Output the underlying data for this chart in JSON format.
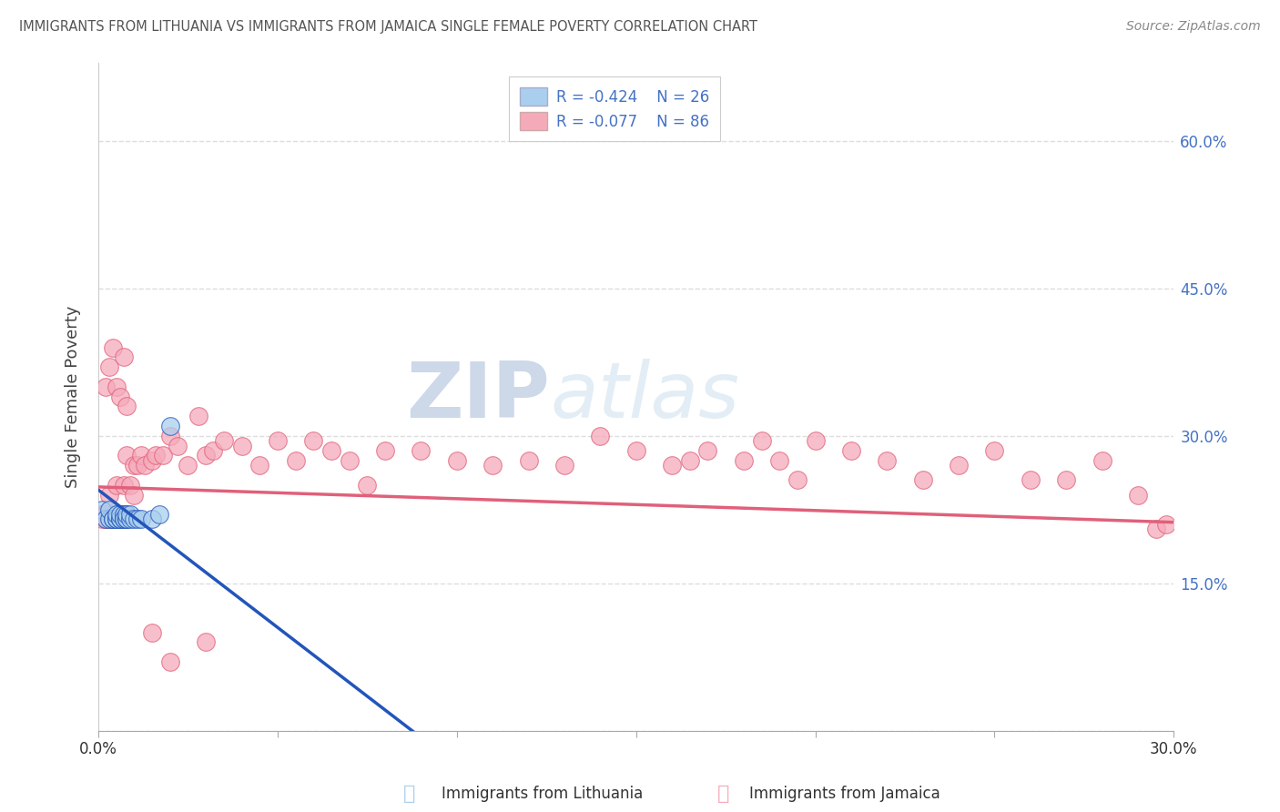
{
  "title": "IMMIGRANTS FROM LITHUANIA VS IMMIGRANTS FROM JAMAICA SINGLE FEMALE POVERTY CORRELATION CHART",
  "source": "Source: ZipAtlas.com",
  "ylabel": "Single Female Poverty",
  "xlim": [
    0.0,
    0.3
  ],
  "ylim": [
    0.0,
    0.68
  ],
  "xticks": [
    0.0,
    0.05,
    0.1,
    0.15,
    0.2,
    0.25,
    0.3
  ],
  "yticks": [
    0.0,
    0.15,
    0.3,
    0.45,
    0.6
  ],
  "legend_R1": "R = -0.424",
  "legend_N1": "N = 26",
  "legend_R2": "R = -0.077",
  "legend_N2": "N = 86",
  "color_lithuania": "#aacfee",
  "color_jamaica": "#f5aaba",
  "color_blue_line": "#2255bb",
  "color_pink_line": "#e0607a",
  "color_dashed": "#b8c8d8",
  "watermark_zip": "ZIP",
  "watermark_atlas": "atlas",
  "lithuania_x": [
    0.001,
    0.002,
    0.003,
    0.003,
    0.004,
    0.004,
    0.005,
    0.005,
    0.005,
    0.006,
    0.006,
    0.006,
    0.007,
    0.007,
    0.007,
    0.008,
    0.008,
    0.008,
    0.009,
    0.009,
    0.01,
    0.011,
    0.012,
    0.015,
    0.017,
    0.02
  ],
  "lithuania_y": [
    0.225,
    0.215,
    0.215,
    0.225,
    0.215,
    0.215,
    0.215,
    0.215,
    0.22,
    0.215,
    0.215,
    0.22,
    0.215,
    0.22,
    0.215,
    0.215,
    0.215,
    0.22,
    0.215,
    0.22,
    0.215,
    0.215,
    0.215,
    0.215,
    0.22,
    0.31
  ],
  "jamaica_x": [
    0.001,
    0.001,
    0.001,
    0.002,
    0.002,
    0.002,
    0.002,
    0.002,
    0.003,
    0.003,
    0.003,
    0.003,
    0.004,
    0.004,
    0.004,
    0.004,
    0.005,
    0.005,
    0.005,
    0.006,
    0.006,
    0.007,
    0.007,
    0.008,
    0.008,
    0.009,
    0.01,
    0.01,
    0.011,
    0.012,
    0.013,
    0.015,
    0.016,
    0.018,
    0.02,
    0.022,
    0.025,
    0.028,
    0.03,
    0.032,
    0.035,
    0.04,
    0.045,
    0.05,
    0.055,
    0.06,
    0.065,
    0.07,
    0.075,
    0.08,
    0.09,
    0.1,
    0.11,
    0.12,
    0.13,
    0.14,
    0.15,
    0.16,
    0.165,
    0.17,
    0.18,
    0.185,
    0.19,
    0.195,
    0.2,
    0.21,
    0.22,
    0.23,
    0.24,
    0.25,
    0.26,
    0.27,
    0.28,
    0.29,
    0.295,
    0.298,
    0.002,
    0.003,
    0.004,
    0.005,
    0.006,
    0.007,
    0.008,
    0.015,
    0.02,
    0.03
  ],
  "jamaica_y": [
    0.22,
    0.22,
    0.215,
    0.22,
    0.215,
    0.22,
    0.215,
    0.22,
    0.22,
    0.215,
    0.215,
    0.24,
    0.22,
    0.215,
    0.22,
    0.215,
    0.22,
    0.22,
    0.25,
    0.22,
    0.215,
    0.22,
    0.25,
    0.22,
    0.28,
    0.25,
    0.27,
    0.24,
    0.27,
    0.28,
    0.27,
    0.275,
    0.28,
    0.28,
    0.3,
    0.29,
    0.27,
    0.32,
    0.28,
    0.285,
    0.295,
    0.29,
    0.27,
    0.295,
    0.275,
    0.295,
    0.285,
    0.275,
    0.25,
    0.285,
    0.285,
    0.275,
    0.27,
    0.275,
    0.27,
    0.3,
    0.285,
    0.27,
    0.275,
    0.285,
    0.275,
    0.295,
    0.275,
    0.255,
    0.295,
    0.285,
    0.275,
    0.255,
    0.27,
    0.285,
    0.255,
    0.255,
    0.275,
    0.24,
    0.205,
    0.21,
    0.35,
    0.37,
    0.39,
    0.35,
    0.34,
    0.38,
    0.33,
    0.1,
    0.07,
    0.09
  ],
  "lith_line_x_end": 0.13,
  "lith_line_slope": -2.8,
  "lith_line_intercept": 0.245,
  "jam_line_slope": -0.12,
  "jam_line_intercept": 0.248
}
